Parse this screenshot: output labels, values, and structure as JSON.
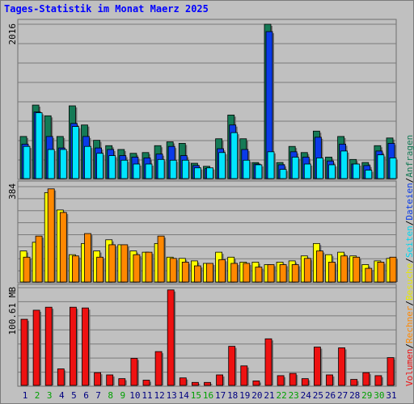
{
  "title": "Tages-Statistik im Monat Maerz 2025",
  "colors": {
    "anfragen": "#157a56",
    "dateien": "#0a3be8",
    "seiten": "#00e4ff",
    "besuche": "#ffff00",
    "rechner": "#ff8800",
    "volumen": "#ee1111",
    "weekday_label": "#000080",
    "weekend_label": "#00a000"
  },
  "legend_right": {
    "anfragen": "Anfragen",
    "dateien": "Dateien",
    "seiten": "Seiten",
    "besuche": "Besuche",
    "rechner": "Rechner",
    "volumen": "Volumen",
    "sep": "/"
  },
  "chart_data": [
    {
      "type": "bar",
      "name": "hits",
      "ymax_label": "2016",
      "ylim": [
        0,
        2016
      ],
      "categories": [
        "1",
        "2",
        "3",
        "4",
        "5",
        "6",
        "7",
        "8",
        "9",
        "10",
        "11",
        "12",
        "13",
        "14",
        "15",
        "16",
        "17",
        "18",
        "19",
        "20",
        "21",
        "22",
        "23",
        "24",
        "25",
        "26",
        "27",
        "28",
        "29",
        "30",
        "31"
      ],
      "weekend": [
        false,
        true,
        true,
        false,
        false,
        false,
        false,
        true,
        true,
        false,
        false,
        false,
        false,
        false,
        true,
        true,
        false,
        false,
        false,
        false,
        false,
        true,
        true,
        false,
        false,
        false,
        false,
        false,
        true,
        true,
        false
      ],
      "series": [
        {
          "name": "Anfragen",
          "values": [
            550,
            960,
            820,
            550,
            950,
            700,
            500,
            430,
            380,
            330,
            340,
            430,
            480,
            460,
            200,
            160,
            520,
            830,
            520,
            210,
            2016,
            210,
            420,
            340,
            620,
            280,
            550,
            250,
            210,
            430,
            530
          ]
        },
        {
          "name": "Dateien",
          "values": [
            450,
            870,
            550,
            400,
            720,
            550,
            400,
            380,
            300,
            280,
            270,
            320,
            420,
            300,
            170,
            130,
            390,
            700,
            380,
            190,
            1920,
            180,
            350,
            280,
            540,
            230,
            450,
            190,
            170,
            360,
            460
          ]
        },
        {
          "name": "Seiten",
          "values": [
            420,
            860,
            380,
            380,
            680,
            420,
            330,
            300,
            240,
            190,
            190,
            250,
            240,
            240,
            140,
            140,
            340,
            600,
            240,
            180,
            350,
            120,
            280,
            190,
            270,
            180,
            360,
            190,
            110,
            310,
            270
          ]
        }
      ]
    },
    {
      "type": "bar",
      "name": "visits",
      "ymax_label": "384",
      "ylim": [
        0,
        384
      ],
      "categories": [
        "1",
        "2",
        "3",
        "4",
        "5",
        "6",
        "7",
        "8",
        "9",
        "10",
        "11",
        "12",
        "13",
        "14",
        "15",
        "16",
        "17",
        "18",
        "19",
        "20",
        "21",
        "22",
        "23",
        "24",
        "25",
        "26",
        "27",
        "28",
        "29",
        "30",
        "31"
      ],
      "series": [
        {
          "name": "Besuche",
          "values": [
            125,
            160,
            360,
            290,
            110,
            155,
            125,
            170,
            150,
            125,
            120,
            155,
            100,
            95,
            85,
            75,
            120,
            100,
            80,
            80,
            70,
            80,
            85,
            105,
            155,
            110,
            120,
            105,
            70,
            85,
            95
          ]
        },
        {
          "name": "Rechner",
          "values": [
            100,
            185,
            375,
            280,
            105,
            195,
            100,
            150,
            150,
            110,
            120,
            185,
            95,
            80,
            65,
            75,
            90,
            75,
            75,
            60,
            70,
            70,
            70,
            95,
            125,
            80,
            105,
            100,
            55,
            80,
            100
          ]
        }
      ]
    },
    {
      "type": "bar",
      "name": "volume",
      "ymax_label": "100.61 MB",
      "ylim": [
        0,
        130
      ],
      "categories": [
        "1",
        "2",
        "3",
        "4",
        "5",
        "6",
        "7",
        "8",
        "9",
        "10",
        "11",
        "12",
        "13",
        "14",
        "15",
        "16",
        "17",
        "18",
        "19",
        "20",
        "21",
        "22",
        "23",
        "24",
        "25",
        "26",
        "27",
        "28",
        "29",
        "30",
        "31"
      ],
      "series": [
        {
          "name": "Volumen",
          "values": [
            88,
            100,
            104,
            22,
            104,
            103,
            17,
            14,
            9,
            36,
            7,
            45,
            127,
            10,
            4,
            4,
            14,
            52,
            26,
            6,
            62,
            13,
            16,
            9,
            51,
            14,
            50,
            8,
            17,
            13,
            37
          ]
        }
      ]
    }
  ]
}
